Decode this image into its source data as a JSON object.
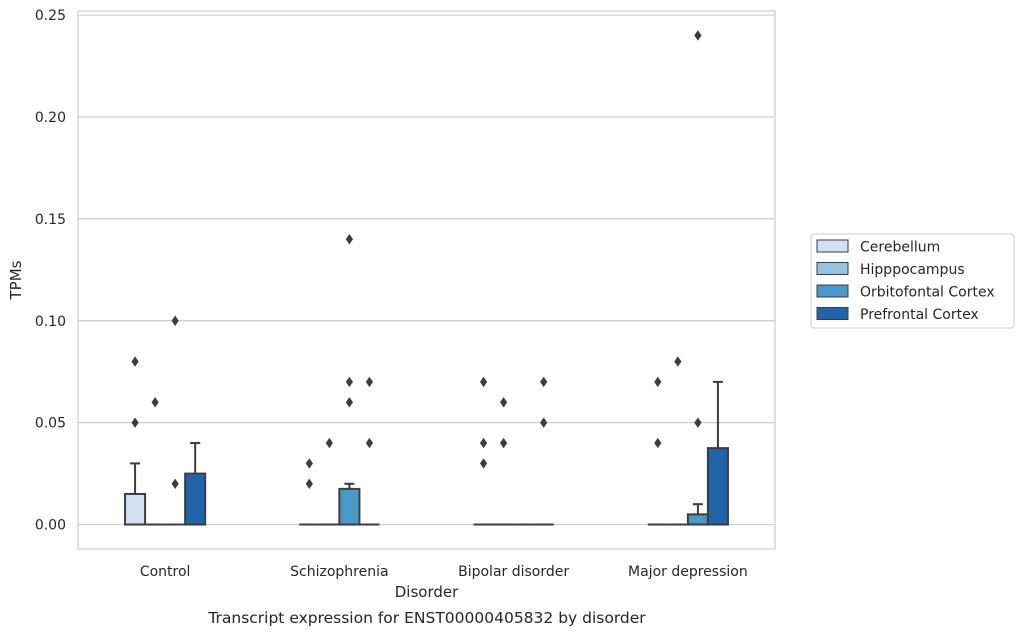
{
  "chart_data": {
    "type": "box",
    "title": "Transcript expression for ENST00000405832 by disorder",
    "xlabel": "Disorder",
    "ylabel": "TPMs",
    "ylim": [
      -0.012,
      0.252
    ],
    "yticks": [
      "0.00",
      "0.05",
      "0.10",
      "0.15",
      "0.20",
      "0.25"
    ],
    "ytick_values": [
      0,
      0.05,
      0.1,
      0.15,
      0.2,
      0.25
    ],
    "grid": true,
    "legend_position": "right",
    "categories": [
      "Control",
      "Schizophrenia",
      "Bipolar disorder",
      "Major depression"
    ],
    "series": [
      {
        "name": "Cerebellum",
        "color": "#d0e1f2",
        "boxes": [
          {
            "q1": 0,
            "median": 0,
            "q3": 0.015,
            "whisker_low": 0,
            "whisker_high": 0.03,
            "outliers": [
              0.05,
              0.08
            ]
          },
          {
            "q1": 0,
            "median": 0,
            "q3": 0,
            "whisker_low": 0,
            "whisker_high": 0,
            "outliers": [
              0.02,
              0.03
            ]
          },
          {
            "q1": 0,
            "median": 0,
            "q3": 0,
            "whisker_low": 0,
            "whisker_high": 0,
            "outliers": [
              0.03,
              0.04,
              0.07
            ]
          },
          {
            "q1": 0,
            "median": 0,
            "q3": 0,
            "whisker_low": 0,
            "whisker_high": 0,
            "outliers": [
              0.04,
              0.07
            ]
          }
        ]
      },
      {
        "name": "Hipppocampus",
        "color": "#94c4df",
        "boxes": [
          {
            "q1": 0,
            "median": 0,
            "q3": 0,
            "whisker_low": 0,
            "whisker_high": 0,
            "outliers": [
              0.06
            ]
          },
          {
            "q1": 0,
            "median": 0,
            "q3": 0,
            "whisker_low": 0,
            "whisker_high": 0,
            "outliers": [
              0.04
            ]
          },
          {
            "q1": 0,
            "median": 0,
            "q3": 0,
            "whisker_low": 0,
            "whisker_high": 0,
            "outliers": [
              0.04,
              0.06
            ]
          },
          {
            "q1": 0,
            "median": 0,
            "q3": 0,
            "whisker_low": 0,
            "whisker_high": 0,
            "outliers": [
              0.08
            ]
          }
        ]
      },
      {
        "name": "Orbitofontal Cortex",
        "color": "#4a98c9",
        "boxes": [
          {
            "q1": 0,
            "median": 0,
            "q3": 0,
            "whisker_low": 0,
            "whisker_high": 0,
            "outliers": [
              0.02,
              0.1
            ]
          },
          {
            "q1": 0,
            "median": 0,
            "q3": 0.0175,
            "whisker_low": 0,
            "whisker_high": 0.02,
            "outliers": [
              0.06,
              0.07,
              0.14
            ]
          },
          {
            "q1": 0,
            "median": 0,
            "q3": 0,
            "whisker_low": 0,
            "whisker_high": 0,
            "outliers": []
          },
          {
            "q1": 0,
            "median": 0,
            "q3": 0.005,
            "whisker_low": 0,
            "whisker_high": 0.01,
            "outliers": [
              0.05,
              0.24
            ]
          }
        ]
      },
      {
        "name": "Prefrontal Cortex",
        "color": "#2264aa",
        "boxes": [
          {
            "q1": 0,
            "median": 0,
            "q3": 0.025,
            "whisker_low": 0,
            "whisker_high": 0.04,
            "outliers": []
          },
          {
            "q1": 0,
            "median": 0,
            "q3": 0,
            "whisker_low": 0,
            "whisker_high": 0,
            "outliers": [
              0.04,
              0.07
            ]
          },
          {
            "q1": 0,
            "median": 0,
            "q3": 0,
            "whisker_low": 0,
            "whisker_high": 0,
            "outliers": [
              0.05,
              0.07
            ]
          },
          {
            "q1": 0,
            "median": 0,
            "q3": 0.0375,
            "whisker_low": 0,
            "whisker_high": 0.07,
            "outliers": []
          }
        ]
      }
    ]
  }
}
